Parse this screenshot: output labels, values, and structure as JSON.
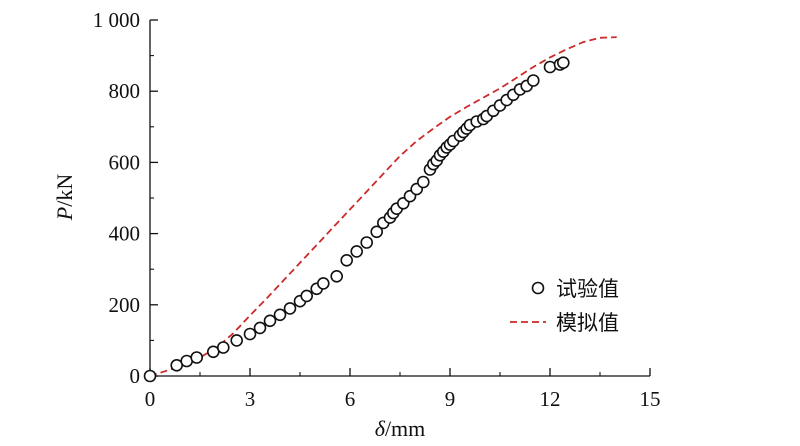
{
  "chart_data": {
    "type": "scatter",
    "title": "",
    "xlabel": {
      "symbol": "δ",
      "unit": "/mm"
    },
    "ylabel": {
      "symbol": "P",
      "unit": "/kN"
    },
    "xlim": [
      0,
      15
    ],
    "ylim": [
      0,
      1000
    ],
    "x_ticks": [
      0,
      3,
      6,
      9,
      12,
      15
    ],
    "x_tick_labels": [
      "0",
      "3",
      "6",
      "9",
      "12",
      "15"
    ],
    "y_ticks": [
      0,
      200,
      400,
      600,
      800,
      1000
    ],
    "y_tick_labels": [
      "0",
      "200",
      "400",
      "600",
      "800",
      "1 000"
    ],
    "grid": false,
    "legend_position": "lower-right",
    "colors": {
      "axis": "#111111",
      "experiment": "#111111",
      "simulation": "#cc2a2a"
    },
    "series": [
      {
        "name": "试验值",
        "kind": "scatter",
        "marker": "open-circle",
        "x": [
          0.0,
          0.8,
          1.1,
          1.4,
          1.9,
          2.2,
          2.6,
          3.0,
          3.3,
          3.6,
          3.9,
          4.2,
          4.5,
          4.7,
          5.0,
          5.2,
          5.6,
          5.9,
          6.2,
          6.5,
          6.8,
          7.0,
          7.2,
          7.3,
          7.4,
          7.6,
          7.8,
          8.0,
          8.2,
          8.4,
          8.5,
          8.6,
          8.7,
          8.8,
          8.9,
          9.0,
          9.1,
          9.3,
          9.4,
          9.5,
          9.6,
          9.8,
          10.0,
          10.1,
          10.3,
          10.5,
          10.7,
          10.9,
          11.1,
          11.3,
          11.5,
          12.0,
          12.3,
          12.4
        ],
        "y": [
          0,
          30,
          42,
          52,
          68,
          80,
          100,
          118,
          135,
          155,
          172,
          190,
          210,
          225,
          245,
          260,
          280,
          325,
          350,
          375,
          405,
          430,
          445,
          458,
          470,
          485,
          505,
          525,
          545,
          580,
          595,
          605,
          620,
          630,
          642,
          650,
          660,
          675,
          685,
          695,
          705,
          715,
          722,
          730,
          745,
          760,
          775,
          790,
          805,
          815,
          830,
          868,
          875,
          880
        ]
      },
      {
        "name": "模拟值",
        "kind": "line",
        "style": "dashed",
        "x": [
          0,
          0.5,
          1.0,
          1.5,
          2.0,
          2.5,
          3.0,
          3.5,
          4.0,
          4.5,
          5.0,
          5.5,
          6.0,
          6.5,
          7.0,
          7.5,
          8.0,
          8.5,
          9.0,
          9.5,
          10.0,
          10.5,
          11.0,
          11.5,
          12.0,
          12.5,
          13.0,
          13.5,
          14.0
        ],
        "y": [
          0,
          15,
          30,
          52,
          80,
          120,
          170,
          218,
          268,
          318,
          368,
          418,
          468,
          518,
          568,
          618,
          660,
          695,
          728,
          756,
          782,
          808,
          838,
          868,
          895,
          918,
          938,
          950,
          952
        ]
      }
    ]
  }
}
